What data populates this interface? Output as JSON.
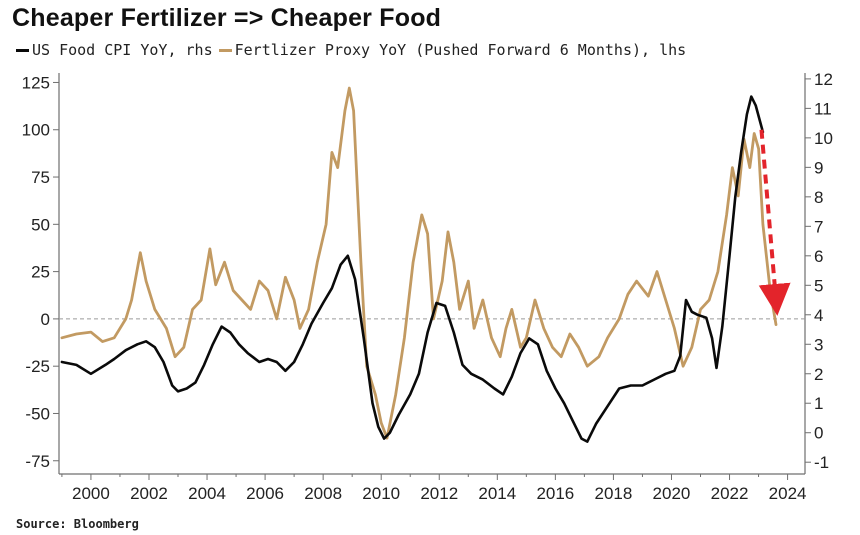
{
  "title": "Cheaper Fertilizer => Cheaper Food",
  "source": "Source: Bloomberg",
  "colors": {
    "cpi": "#0a0a0a",
    "fert": "#c29a62",
    "arrow": "#e3242b",
    "zero_line": "#9a9a9a",
    "axis": "#6f6f6f"
  },
  "chart_data": {
    "type": "line",
    "title": "Cheaper Fertilizer => Cheaper Food",
    "x_range": [
      1998.9,
      2024.6
    ],
    "x_ticks": [
      2000,
      2002,
      2004,
      2006,
      2008,
      2010,
      2012,
      2014,
      2016,
      2018,
      2020,
      2022,
      2024
    ],
    "left_axis": {
      "range": [
        -82,
        130
      ],
      "ticks": [
        -75,
        -50,
        -25,
        0,
        25,
        50,
        75,
        100,
        125
      ],
      "reference_line": 0
    },
    "right_axis": {
      "range": [
        -1.4,
        12.2
      ],
      "ticks": [
        -1,
        0,
        1,
        2,
        3,
        4,
        5,
        6,
        7,
        8,
        9,
        10,
        11,
        12
      ]
    },
    "legend_position": "top-left",
    "grid": false,
    "series": [
      {
        "name": "US Food CPI YoY, rhs",
        "axis": "right",
        "points": [
          [
            1999.0,
            2.4
          ],
          [
            1999.5,
            2.3
          ],
          [
            2000.0,
            2.0
          ],
          [
            2000.5,
            2.3
          ],
          [
            2000.8,
            2.5
          ],
          [
            2001.2,
            2.8
          ],
          [
            2001.6,
            3.0
          ],
          [
            2001.9,
            3.1
          ],
          [
            2002.2,
            2.9
          ],
          [
            2002.5,
            2.4
          ],
          [
            2002.8,
            1.6
          ],
          [
            2003.0,
            1.4
          ],
          [
            2003.3,
            1.5
          ],
          [
            2003.6,
            1.7
          ],
          [
            2003.9,
            2.3
          ],
          [
            2004.2,
            3.0
          ],
          [
            2004.5,
            3.6
          ],
          [
            2004.8,
            3.4
          ],
          [
            2005.1,
            3.0
          ],
          [
            2005.4,
            2.7
          ],
          [
            2005.8,
            2.4
          ],
          [
            2006.1,
            2.5
          ],
          [
            2006.4,
            2.4
          ],
          [
            2006.7,
            2.1
          ],
          [
            2007.0,
            2.4
          ],
          [
            2007.3,
            3.0
          ],
          [
            2007.6,
            3.7
          ],
          [
            2008.0,
            4.4
          ],
          [
            2008.3,
            4.9
          ],
          [
            2008.6,
            5.7
          ],
          [
            2008.85,
            6.0
          ],
          [
            2009.1,
            5.2
          ],
          [
            2009.4,
            3.2
          ],
          [
            2009.7,
            1.0
          ],
          [
            2009.9,
            0.2
          ],
          [
            2010.1,
            -0.2
          ],
          [
            2010.3,
            0.0
          ],
          [
            2010.6,
            0.6
          ],
          [
            2011.0,
            1.3
          ],
          [
            2011.3,
            2.0
          ],
          [
            2011.6,
            3.4
          ],
          [
            2011.9,
            4.4
          ],
          [
            2012.2,
            4.3
          ],
          [
            2012.5,
            3.4
          ],
          [
            2012.8,
            2.3
          ],
          [
            2013.1,
            2.0
          ],
          [
            2013.5,
            1.8
          ],
          [
            2013.9,
            1.5
          ],
          [
            2014.2,
            1.3
          ],
          [
            2014.5,
            1.9
          ],
          [
            2014.8,
            2.7
          ],
          [
            2015.1,
            3.2
          ],
          [
            2015.4,
            3.0
          ],
          [
            2015.7,
            2.1
          ],
          [
            2016.0,
            1.5
          ],
          [
            2016.3,
            1.0
          ],
          [
            2016.6,
            0.4
          ],
          [
            2016.9,
            -0.2
          ],
          [
            2017.1,
            -0.3
          ],
          [
            2017.4,
            0.3
          ],
          [
            2017.8,
            0.9
          ],
          [
            2018.2,
            1.5
          ],
          [
            2018.6,
            1.6
          ],
          [
            2019.0,
            1.6
          ],
          [
            2019.4,
            1.8
          ],
          [
            2019.8,
            2.0
          ],
          [
            2020.1,
            2.1
          ],
          [
            2020.3,
            2.6
          ],
          [
            2020.5,
            4.5
          ],
          [
            2020.7,
            4.1
          ],
          [
            2020.9,
            4.0
          ],
          [
            2021.2,
            3.9
          ],
          [
            2021.4,
            3.2
          ],
          [
            2021.55,
            2.2
          ],
          [
            2021.75,
            3.6
          ],
          [
            2022.0,
            6.0
          ],
          [
            2022.2,
            8.0
          ],
          [
            2022.4,
            9.5
          ],
          [
            2022.6,
            10.8
          ],
          [
            2022.75,
            11.4
          ],
          [
            2022.9,
            11.1
          ],
          [
            2023.15,
            10.2
          ]
        ]
      },
      {
        "name": "Fertlizer Proxy YoY (Pushed Forward 6 Months), lhs",
        "axis": "left",
        "points": [
          [
            1999.0,
            -10
          ],
          [
            1999.5,
            -8
          ],
          [
            2000.0,
            -7
          ],
          [
            2000.4,
            -12
          ],
          [
            2000.8,
            -10
          ],
          [
            2001.2,
            0
          ],
          [
            2001.4,
            10
          ],
          [
            2001.7,
            35
          ],
          [
            2001.9,
            20
          ],
          [
            2002.2,
            5
          ],
          [
            2002.6,
            -5
          ],
          [
            2002.9,
            -20
          ],
          [
            2003.2,
            -15
          ],
          [
            2003.5,
            5
          ],
          [
            2003.8,
            10
          ],
          [
            2004.1,
            37
          ],
          [
            2004.3,
            18
          ],
          [
            2004.6,
            30
          ],
          [
            2004.9,
            15
          ],
          [
            2005.2,
            10
          ],
          [
            2005.5,
            5
          ],
          [
            2005.8,
            20
          ],
          [
            2006.1,
            15
          ],
          [
            2006.4,
            0
          ],
          [
            2006.7,
            22
          ],
          [
            2007.0,
            10
          ],
          [
            2007.2,
            -5
          ],
          [
            2007.5,
            5
          ],
          [
            2007.8,
            30
          ],
          [
            2008.1,
            50
          ],
          [
            2008.3,
            88
          ],
          [
            2008.5,
            80
          ],
          [
            2008.75,
            110
          ],
          [
            2008.9,
            122
          ],
          [
            2009.05,
            110
          ],
          [
            2009.3,
            30
          ],
          [
            2009.5,
            -25
          ],
          [
            2009.8,
            -40
          ],
          [
            2010.0,
            -55
          ],
          [
            2010.2,
            -63
          ],
          [
            2010.5,
            -40
          ],
          [
            2010.8,
            -10
          ],
          [
            2011.1,
            30
          ],
          [
            2011.4,
            55
          ],
          [
            2011.6,
            45
          ],
          [
            2011.8,
            0
          ],
          [
            2012.1,
            20
          ],
          [
            2012.3,
            46
          ],
          [
            2012.5,
            30
          ],
          [
            2012.7,
            5
          ],
          [
            2013.0,
            20
          ],
          [
            2013.2,
            -5
          ],
          [
            2013.5,
            10
          ],
          [
            2013.8,
            -10
          ],
          [
            2014.1,
            -20
          ],
          [
            2014.3,
            -5
          ],
          [
            2014.5,
            5
          ],
          [
            2014.8,
            -15
          ],
          [
            2015.0,
            -10
          ],
          [
            2015.3,
            10
          ],
          [
            2015.6,
            -5
          ],
          [
            2015.9,
            -15
          ],
          [
            2016.2,
            -20
          ],
          [
            2016.5,
            -8
          ],
          [
            2016.8,
            -15
          ],
          [
            2017.1,
            -25
          ],
          [
            2017.5,
            -20
          ],
          [
            2017.8,
            -10
          ],
          [
            2018.2,
            0
          ],
          [
            2018.5,
            13
          ],
          [
            2018.8,
            20
          ],
          [
            2019.2,
            12
          ],
          [
            2019.5,
            25
          ],
          [
            2019.8,
            10
          ],
          [
            2020.1,
            -5
          ],
          [
            2020.4,
            -25
          ],
          [
            2020.7,
            -15
          ],
          [
            2021.0,
            5
          ],
          [
            2021.3,
            10
          ],
          [
            2021.6,
            25
          ],
          [
            2021.9,
            55
          ],
          [
            2022.1,
            80
          ],
          [
            2022.3,
            65
          ],
          [
            2022.5,
            95
          ],
          [
            2022.7,
            80
          ],
          [
            2022.85,
            98
          ],
          [
            2023.0,
            90
          ],
          [
            2023.15,
            50
          ],
          [
            2023.4,
            15
          ],
          [
            2023.6,
            -3
          ]
        ]
      }
    ],
    "annotations": [
      {
        "type": "arrow",
        "style": "dashed",
        "color": "#e3242b",
        "from": [
          2023.1,
          100
        ],
        "to": [
          2023.6,
          10
        ],
        "axis": "left"
      }
    ]
  }
}
